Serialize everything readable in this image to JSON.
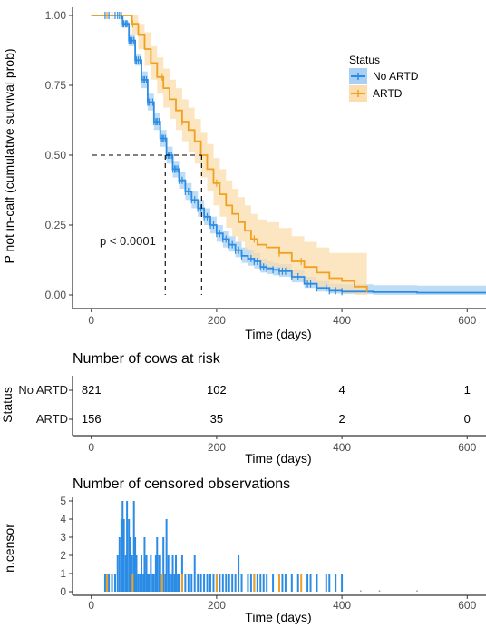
{
  "colors": {
    "no_artd": "#2B8CE6",
    "artd": "#F0A11F",
    "no_artd_band": "#A9D0F2",
    "artd_band": "#FBDDAE"
  },
  "chart_data": [
    {
      "type": "line",
      "subtype": "kaplan-meier",
      "xlabel": "Time (days)",
      "ylabel": "P not in-calf (cumulative survival prob)",
      "xlim": [
        -30,
        630
      ],
      "ylim": [
        0,
        1
      ],
      "x_ticks": [
        "0",
        "200",
        "400",
        "600"
      ],
      "y_ticks": [
        "0.00",
        "0.25",
        "0.50",
        "0.75",
        "1.00"
      ],
      "annotation": "p < 0.0001",
      "legend": {
        "title": "Status",
        "placement": "right",
        "entries": [
          "No ARTD",
          "ARTD"
        ]
      },
      "median_lines": [
        {
          "series": "No ARTD",
          "x": 118,
          "y": 0.5
        },
        {
          "series": "ARTD",
          "x": 176,
          "y": 0.5
        }
      ],
      "series": [
        {
          "name": "No ARTD",
          "x": [
            0,
            40,
            50,
            60,
            70,
            80,
            90,
            100,
            110,
            120,
            130,
            140,
            150,
            160,
            170,
            180,
            190,
            200,
            210,
            220,
            230,
            240,
            250,
            260,
            270,
            280,
            290,
            300,
            320,
            340,
            360,
            380,
            400,
            450,
            520,
            630
          ],
          "y": [
            1.0,
            1.0,
            0.97,
            0.91,
            0.84,
            0.77,
            0.69,
            0.62,
            0.56,
            0.5,
            0.45,
            0.41,
            0.37,
            0.34,
            0.31,
            0.28,
            0.25,
            0.22,
            0.2,
            0.18,
            0.16,
            0.14,
            0.13,
            0.12,
            0.1,
            0.095,
            0.09,
            0.085,
            0.065,
            0.04,
            0.025,
            0.015,
            0.012,
            0.01,
            0.008,
            0.008
          ],
          "lower": [
            1.0,
            1.0,
            0.96,
            0.89,
            0.82,
            0.74,
            0.66,
            0.59,
            0.53,
            0.47,
            0.42,
            0.38,
            0.34,
            0.31,
            0.28,
            0.25,
            0.22,
            0.19,
            0.17,
            0.155,
            0.135,
            0.115,
            0.105,
            0.095,
            0.08,
            0.075,
            0.07,
            0.065,
            0.045,
            0.025,
            0.012,
            0.005,
            0.003,
            0.0,
            0.0,
            0.0
          ],
          "upper": [
            1.0,
            1.0,
            0.98,
            0.93,
            0.86,
            0.8,
            0.72,
            0.65,
            0.59,
            0.53,
            0.48,
            0.44,
            0.4,
            0.37,
            0.34,
            0.31,
            0.28,
            0.25,
            0.23,
            0.21,
            0.19,
            0.17,
            0.16,
            0.15,
            0.13,
            0.12,
            0.115,
            0.11,
            0.09,
            0.065,
            0.05,
            0.04,
            0.038,
            0.035,
            0.033,
            0.033
          ]
        },
        {
          "name": "ARTD",
          "x": [
            0,
            55,
            65,
            75,
            85,
            95,
            105,
            115,
            125,
            135,
            145,
            155,
            165,
            175,
            185,
            195,
            205,
            215,
            225,
            235,
            245,
            255,
            265,
            280,
            300,
            320,
            340,
            360,
            380,
            400,
            420,
            440
          ],
          "y": [
            1.0,
            1.0,
            0.97,
            0.93,
            0.88,
            0.83,
            0.78,
            0.74,
            0.7,
            0.66,
            0.62,
            0.59,
            0.55,
            0.5,
            0.45,
            0.4,
            0.36,
            0.32,
            0.29,
            0.26,
            0.23,
            0.2,
            0.18,
            0.17,
            0.15,
            0.12,
            0.1,
            0.08,
            0.06,
            0.05,
            0.03,
            0.01
          ],
          "lower": [
            1.0,
            1.0,
            0.93,
            0.88,
            0.82,
            0.77,
            0.72,
            0.67,
            0.63,
            0.59,
            0.55,
            0.51,
            0.47,
            0.42,
            0.37,
            0.32,
            0.28,
            0.24,
            0.21,
            0.19,
            0.16,
            0.13,
            0.11,
            0.1,
            0.08,
            0.06,
            0.045,
            0.03,
            0.015,
            0.005,
            0.0,
            0.0
          ],
          "upper": [
            1.0,
            1.0,
            1.0,
            0.97,
            0.94,
            0.89,
            0.85,
            0.81,
            0.77,
            0.74,
            0.7,
            0.67,
            0.63,
            0.58,
            0.54,
            0.49,
            0.45,
            0.41,
            0.38,
            0.35,
            0.32,
            0.29,
            0.27,
            0.26,
            0.24,
            0.21,
            0.19,
            0.17,
            0.15,
            0.15,
            0.15,
            0.15
          ]
        }
      ]
    },
    {
      "type": "table",
      "title": "Number of cows at risk",
      "row_axis_label": "Status",
      "xlabel": "Time (days)",
      "x_ticks": [
        "0",
        "200",
        "400",
        "600"
      ],
      "times": [
        0,
        200,
        400,
        600
      ],
      "rows": [
        {
          "name": "No ARTD",
          "values": [
            "821",
            "102",
            "4",
            "1"
          ]
        },
        {
          "name": "ARTD",
          "values": [
            "156",
            "35",
            "2",
            "0"
          ]
        }
      ]
    },
    {
      "type": "bar",
      "title": "Number of censored observations",
      "ylabel": "n.censor",
      "xlabel": "Time (days)",
      "x_ticks": [
        "0",
        "200",
        "400",
        "600"
      ],
      "y_ticks": [
        "0",
        "1",
        "2",
        "3",
        "4",
        "5"
      ],
      "ylim": [
        0,
        5
      ],
      "series": [
        {
          "name": "No ARTD",
          "x": [
            22,
            28,
            33,
            38,
            42,
            45,
            48,
            50,
            52,
            55,
            57,
            60,
            62,
            65,
            68,
            70,
            72,
            75,
            78,
            80,
            83,
            85,
            88,
            90,
            92,
            95,
            98,
            100,
            103,
            105,
            108,
            110,
            113,
            115,
            118,
            120,
            123,
            125,
            128,
            130,
            133,
            135,
            138,
            140,
            145,
            150,
            155,
            160,
            165,
            170,
            175,
            180,
            185,
            190,
            195,
            200,
            205,
            210,
            215,
            220,
            225,
            230,
            235,
            240,
            250,
            255,
            260,
            265,
            270,
            275,
            280,
            290,
            300,
            305,
            310,
            320,
            330,
            345,
            350,
            360,
            375,
            380,
            390,
            400
          ],
          "y": [
            1,
            1,
            1,
            1,
            2,
            3,
            4,
            5,
            4,
            2,
            5,
            4,
            3,
            2,
            5,
            3,
            2,
            1,
            1,
            2,
            1,
            3,
            2,
            1,
            1,
            2,
            1,
            1,
            2,
            3,
            2,
            2,
            1,
            3,
            1,
            4,
            2,
            1,
            1,
            2,
            1,
            2,
            1,
            1,
            2,
            1,
            1,
            1,
            2,
            1,
            1,
            1,
            1,
            1,
            1,
            1,
            1,
            1,
            1,
            1,
            1,
            1,
            2,
            1,
            1,
            1,
            1,
            1,
            1,
            1,
            1,
            1,
            1,
            1,
            1,
            1,
            1,
            1,
            1,
            1,
            1,
            1,
            1,
            1
          ]
        },
        {
          "name": "ARTD",
          "x": [
            25,
            66,
            113,
            145,
            200,
            260,
            300,
            335
          ],
          "y": [
            1,
            1,
            1,
            1,
            1,
            1,
            1,
            1
          ]
        }
      ]
    }
  ]
}
